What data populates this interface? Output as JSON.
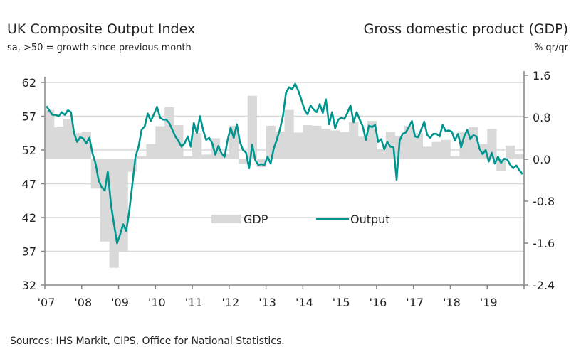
{
  "chart_data": {
    "type": "bar+line",
    "title": "UK Composite Output Index",
    "subtitle": "sa, >50 = growth since previous month",
    "right_title": "Gross domestic product (GDP)",
    "right_unit": "% qr/qr",
    "source": "Sources: IHS Markit, CIPS, Office for National Statistics.",
    "x_tick_labels": [
      "'07",
      "'08",
      "'09",
      "'10",
      "'11",
      "'12",
      "'13",
      "'14",
      "'15",
      "'16",
      "'17",
      "'18",
      "'19"
    ],
    "x_range": [
      2007,
      2020
    ],
    "left_axis": {
      "range": [
        32,
        62
      ],
      "ticks": [
        "62",
        "57",
        "52",
        "47",
        "42",
        "37",
        "32"
      ]
    },
    "right_axis": {
      "range": [
        -2.4,
        1.6
      ],
      "ticks": [
        "1.6",
        "0.8",
        "0.0",
        "-0.8",
        "-1.6",
        "-2.4"
      ]
    },
    "grid": true,
    "legend": {
      "position": "center",
      "gdp_label": "GDP",
      "output_label": "Output"
    },
    "colors": {
      "gdp": "#d9d9d9",
      "output": "#00968f",
      "axis": "#888888",
      "grid": "#d9d9d9"
    },
    "series": [
      {
        "name": "GDP",
        "axis": "right",
        "frequency": "quarterly",
        "start": "2007 Q1",
        "values": [
          0.94,
          0.61,
          0.76,
          0.5,
          0.53,
          -0.56,
          -1.57,
          -2.07,
          -1.76,
          -0.24,
          0.06,
          0.29,
          0.63,
          0.99,
          0.65,
          0.06,
          0.5,
          0.09,
          0.4,
          0.1,
          0.64,
          -0.09,
          1.21,
          -0.15,
          0.64,
          0.53,
          0.94,
          0.51,
          0.65,
          0.64,
          0.58,
          0.55,
          0.52,
          0.71,
          0.43,
          0.73,
          0.19,
          0.52,
          0.44,
          0.64,
          0.5,
          0.24,
          0.33,
          0.37,
          0.06,
          0.52,
          0.61,
          0.29,
          0.58,
          -0.22,
          0.26,
          0.1
        ]
      },
      {
        "name": "Output",
        "axis": "left",
        "frequency": "monthly",
        "start": "2007-01",
        "values": [
          58.5,
          57.8,
          57.2,
          57.2,
          57.0,
          57.6,
          57.2,
          57.9,
          57.6,
          54.5,
          53.2,
          53.9,
          53.7,
          53.0,
          53.8,
          51.5,
          50.0,
          47.5,
          46.5,
          46.0,
          48.8,
          44.0,
          41.0,
          38.2,
          39.5,
          41.0,
          40.0,
          43.0,
          47.0,
          51.0,
          52.5,
          55.0,
          55.5,
          57.4,
          56.3,
          57.3,
          58.4,
          56.8,
          56.5,
          56.5,
          56.0,
          55.0,
          54.0,
          53.3,
          52.5,
          53.0,
          54.0,
          52.5,
          56.0,
          54.5,
          57.0,
          55.0,
          53.5,
          53.8,
          53.0,
          51.3,
          52.6,
          51.5,
          51.0,
          53.5,
          55.3,
          53.8,
          55.8,
          53.2,
          52.0,
          51.6,
          49.3,
          52.8,
          50.5,
          49.8,
          49.9,
          49.8,
          51.0,
          50.0,
          52.2,
          53.5,
          55.0,
          57.0,
          60.5,
          61.3,
          61.0,
          61.8,
          60.8,
          59.5,
          58.0,
          57.3,
          58.6,
          58.0,
          57.6,
          58.8,
          57.5,
          59.5,
          55.8,
          57.6,
          55.2,
          56.5,
          56.8,
          56.6,
          57.5,
          58.6,
          56.1,
          57.6,
          56.5,
          55.5,
          53.5,
          55.6,
          55.4,
          55.7,
          53.2,
          53.6,
          52.1,
          53.2,
          52.5,
          52.4,
          47.6,
          53.4,
          54.4,
          54.6,
          55.4,
          56.3,
          54.0,
          53.9,
          55.0,
          56.2,
          54.2,
          53.8,
          54.4,
          54.4,
          54.0,
          55.7,
          54.8,
          54.9,
          54.7,
          53.4,
          54.4,
          52.4,
          54.0,
          55.0,
          53.6,
          54.2,
          54.0,
          52.2,
          51.4,
          52.0,
          50.3,
          51.6,
          50.0,
          51.0,
          50.1,
          50.7,
          50.6,
          49.8,
          49.3,
          49.7,
          49.0,
          48.4
        ]
      }
    ]
  }
}
